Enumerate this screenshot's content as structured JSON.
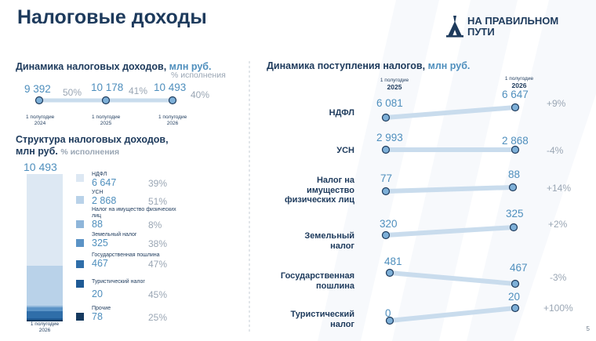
{
  "title": "Налоговые доходы",
  "logo": {
    "line1": "НА ПРАВИЛЬНОМ",
    "line2": "ПУТИ"
  },
  "page_number": "5",
  "colors": {
    "accent": "#4f8fbd",
    "navy": "#1d3a5c",
    "light": "#c9dced",
    "grey": "#9aa6b4"
  },
  "dynamics": {
    "title": "Динамика налоговых доходов,",
    "unit": "млн руб.",
    "pct_header": "% исполнения",
    "points": [
      {
        "value": "9 392",
        "pct": "50%",
        "period": "1 полугодие",
        "year": "2024"
      },
      {
        "value": "10 178",
        "pct": "41%",
        "period": "1 полугодие",
        "year": "2025"
      },
      {
        "value": "10 493",
        "pct": "40%",
        "period": "1 полугодие",
        "year": "2026"
      }
    ]
  },
  "structure": {
    "title_line1": "Структура налоговых доходов,",
    "title_unit": "млн руб.",
    "pct_header": "% исполнения",
    "total": "10 493",
    "bar_period": "1 полугодие",
    "bar_year": "2026",
    "items": [
      {
        "name": "НДФЛ",
        "value": "6 647",
        "amount": 6647,
        "pct": "39%",
        "color": "#dde8f3"
      },
      {
        "name": "УСН",
        "value": "2 868",
        "amount": 2868,
        "pct": "51%",
        "color": "#b9d2e9"
      },
      {
        "name": "Налог на имущество физических лиц",
        "value": "88",
        "amount": 88,
        "pct": "8%",
        "color": "#8fb6da"
      },
      {
        "name": "Земельный налог",
        "value": "325",
        "amount": 325,
        "pct": "38%",
        "color": "#5b93c6"
      },
      {
        "name": "Государственная пошлина",
        "value": "467",
        "amount": 467,
        "pct": "47%",
        "color": "#2f6ea9"
      },
      {
        "name": "Туристический налог",
        "value": "20",
        "amount": 20,
        "pct": "45%",
        "color": "#1e5a95"
      },
      {
        "name": "Прочие",
        "value": "78",
        "amount": 78,
        "pct": "25%",
        "color": "#163a5f"
      }
    ]
  },
  "receipts": {
    "title": "Динамика поступления налогов,",
    "unit": "млн руб.",
    "col1": {
      "period": "1 полугодие",
      "year": "2025"
    },
    "col2": {
      "period": "1 полугодие",
      "year": "2026"
    },
    "rows": [
      {
        "name": "НДФЛ",
        "v2025": "6 081",
        "v2026": "6 647",
        "change": "+9%"
      },
      {
        "name": "УСН",
        "v2025": "2 993",
        "v2026": "2 868",
        "change": "-4%"
      },
      {
        "name": "Налог на имущество физических лиц",
        "v2025": "77",
        "v2026": "88",
        "change": "+14%"
      },
      {
        "name": "Земельный налог",
        "v2025": "320",
        "v2026": "325",
        "change": "+2%"
      },
      {
        "name": "Государственная пошлина",
        "v2025": "481",
        "v2026": "467",
        "change": "-3%"
      },
      {
        "name": "Туристический налог",
        "v2025": "0",
        "v2026": "20",
        "change": "+100%"
      }
    ]
  }
}
